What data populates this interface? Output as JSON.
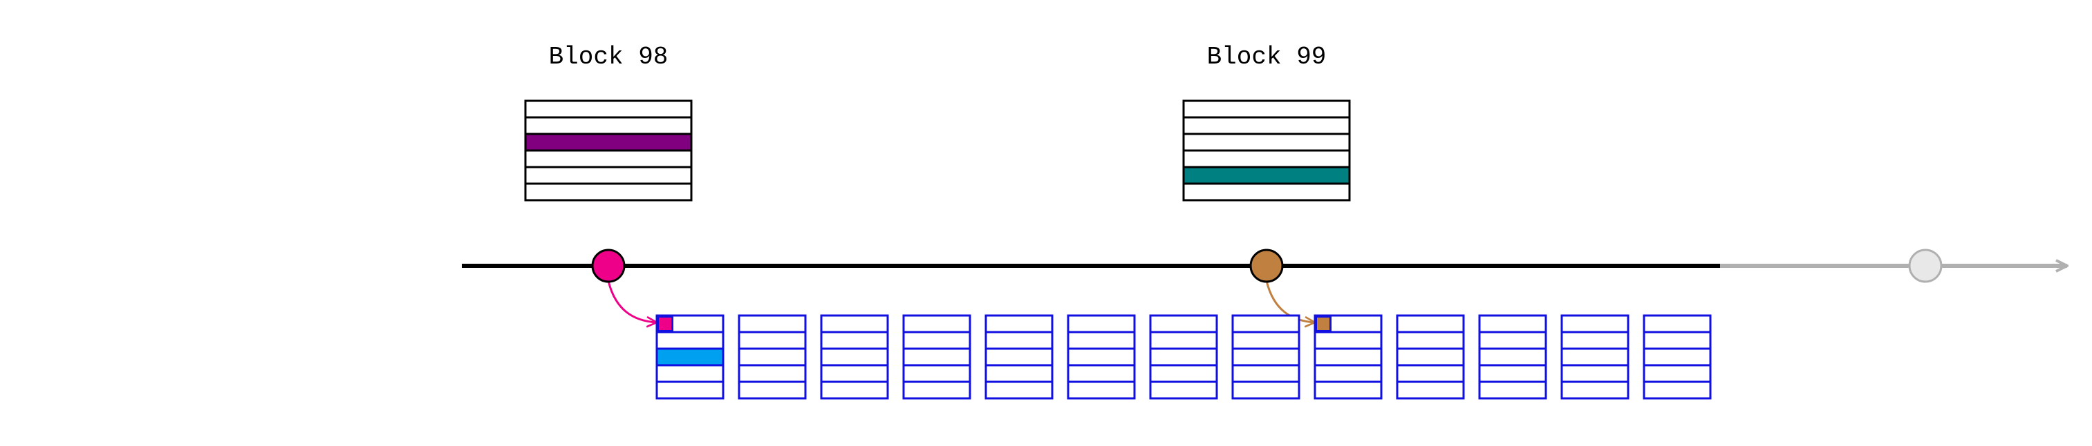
{
  "colors": {
    "line_active": "#000000",
    "line_future": "#b0b0b0",
    "block_border": "#000000",
    "slot_border": "#1010e0",
    "node_future_fill": "#e8e8e8",
    "node_future_stroke": "#b0b0b0"
  },
  "blocks": [
    {
      "title": "Block 98",
      "rows": 6,
      "highlight_row": 2,
      "highlight_color": "#800080",
      "node_color": "#ee0088"
    },
    {
      "title": "Block 99",
      "rows": 6,
      "highlight_row": 4,
      "highlight_color": "#008080",
      "node_color": "#c08040"
    }
  ],
  "future_node": {
    "icon": "circle-icon"
  },
  "slots": {
    "count": 13,
    "rows": 5,
    "items": [
      {
        "index": 0,
        "marker_color": "#ee0088",
        "fill_row": 2,
        "fill_color": "#00a0f0",
        "source_block": 0
      },
      {
        "index": 8,
        "marker_color": "#c08040",
        "source_block": 1
      }
    ]
  }
}
